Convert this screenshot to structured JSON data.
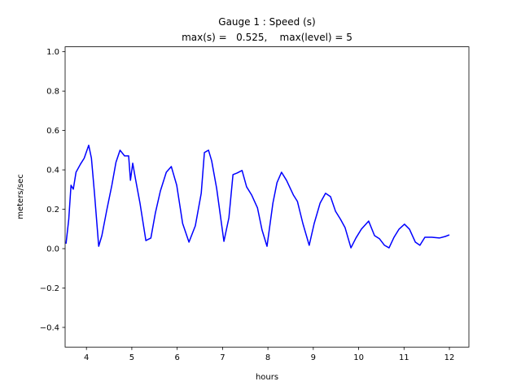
{
  "chart_data": {
    "type": "line",
    "title": [
      "Gauge 1 : Speed (s)",
      "max(s) =   0.525,    max(level) = 5"
    ],
    "x_label": "hours",
    "y_label": "meters/sec",
    "xlim": [
      3.53,
      12.43
    ],
    "ylim": [
      -0.5,
      1.025
    ],
    "xticks": [
      4,
      5,
      6,
      7,
      8,
      9,
      10,
      11,
      12
    ],
    "yticks": [
      {
        "value": -0.4,
        "label": "−0.4"
      },
      {
        "value": -0.2,
        "label": "−0.2"
      },
      {
        "value": 0,
        "label": "0.0"
      },
      0.2,
      0.4,
      0.6,
      0.8,
      {
        "value": 1.0,
        "label": "1.0"
      }
    ],
    "grid": false,
    "series": [
      {
        "color": "#0000ff",
        "x": [
          3.55,
          3.61,
          3.66,
          3.71,
          3.77,
          3.87,
          3.95,
          4.05,
          4.11,
          4.18,
          4.27,
          4.34,
          4.45,
          4.56,
          4.65,
          4.74,
          4.84,
          4.93,
          4.97,
          5.02,
          5.08,
          5.18,
          5.31,
          5.42,
          5.52,
          5.63,
          5.76,
          5.87,
          5.99,
          6.12,
          6.26,
          6.4,
          6.53,
          6.6,
          6.69,
          6.76,
          6.87,
          7.03,
          7.14,
          7.23,
          7.32,
          7.43,
          7.53,
          7.64,
          7.77,
          7.87,
          7.98,
          8.11,
          8.2,
          8.3,
          8.41,
          8.56,
          8.65,
          8.77,
          8.91,
          9.02,
          9.15,
          9.27,
          9.38,
          9.49,
          9.6,
          9.7,
          9.83,
          9.94,
          10.06,
          10.22,
          10.35,
          10.46,
          10.57,
          10.67,
          10.78,
          10.89,
          11.01,
          11.12,
          11.25,
          11.35,
          11.46,
          11.61,
          11.78,
          11.91,
          12.0
        ],
        "values": [
          0.025,
          0.149,
          0.322,
          0.302,
          0.388,
          0.43,
          0.459,
          0.525,
          0.459,
          0.273,
          0.012,
          0.066,
          0.198,
          0.322,
          0.438,
          0.5,
          0.471,
          0.471,
          0.347,
          0.434,
          0.355,
          0.231,
          0.041,
          0.054,
          0.182,
          0.293,
          0.388,
          0.417,
          0.322,
          0.128,
          0.033,
          0.116,
          0.281,
          0.488,
          0.5,
          0.446,
          0.306,
          0.037,
          0.157,
          0.376,
          0.384,
          0.397,
          0.314,
          0.273,
          0.207,
          0.095,
          0.012,
          0.231,
          0.335,
          0.388,
          0.347,
          0.273,
          0.24,
          0.128,
          0.017,
          0.128,
          0.231,
          0.281,
          0.264,
          0.19,
          0.149,
          0.107,
          0.004,
          0.054,
          0.099,
          0.14,
          0.066,
          0.05,
          0.017,
          0.004,
          0.058,
          0.099,
          0.124,
          0.099,
          0.033,
          0.017,
          0.058,
          0.058,
          0.054,
          0.062,
          0.07
        ]
      }
    ]
  }
}
